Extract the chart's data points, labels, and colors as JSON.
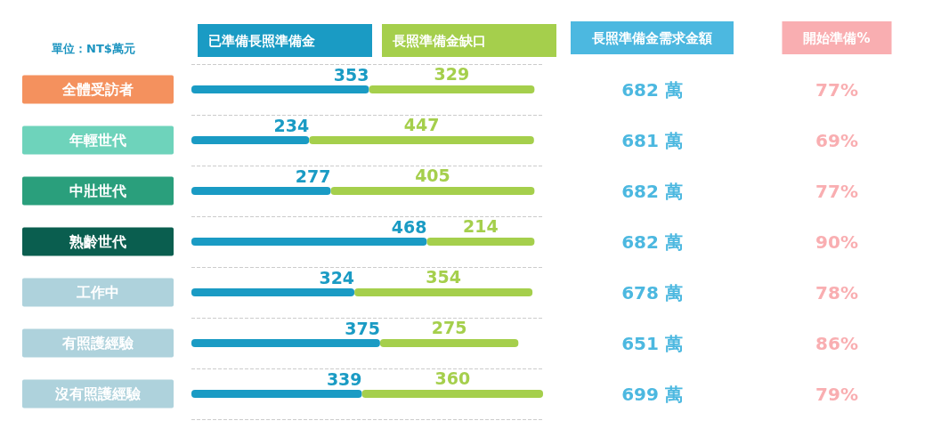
{
  "chart_data": [
    {
      "type": "bar",
      "orientation": "horizontal",
      "stacked": true,
      "ylabel": "單位：NT$萬元",
      "categories": [
        "全體受訪者",
        "年輕世代",
        "中壯世代",
        "熟齡世代",
        "工作中",
        "有照護經驗",
        "沒有照護經驗"
      ],
      "series": [
        {
          "name": "已準備長照準備金",
          "color": "#1a9bc4",
          "values": [
            353,
            234,
            277,
            468,
            324,
            375,
            339
          ]
        },
        {
          "name": "長照準備金缺口",
          "color": "#a5cf4c",
          "values": [
            329,
            447,
            405,
            214,
            354,
            275,
            360
          ]
        }
      ],
      "data_labels": true,
      "legend": "top",
      "grid": "y"
    },
    {
      "type": "other",
      "title": "長照準備金需求金額",
      "color": "#4cb8e0",
      "value_labels": [
        "682 萬",
        "681 萬",
        "682 萬",
        "682 萬",
        "678 萬",
        "651 萬",
        "699 萬"
      ]
    },
    {
      "type": "other",
      "title": "開始準備%",
      "color": "#f9aeb1",
      "value_labels": [
        "77%",
        "69%",
        "77%",
        "90%",
        "78%",
        "86%",
        "79%"
      ]
    }
  ]
}
